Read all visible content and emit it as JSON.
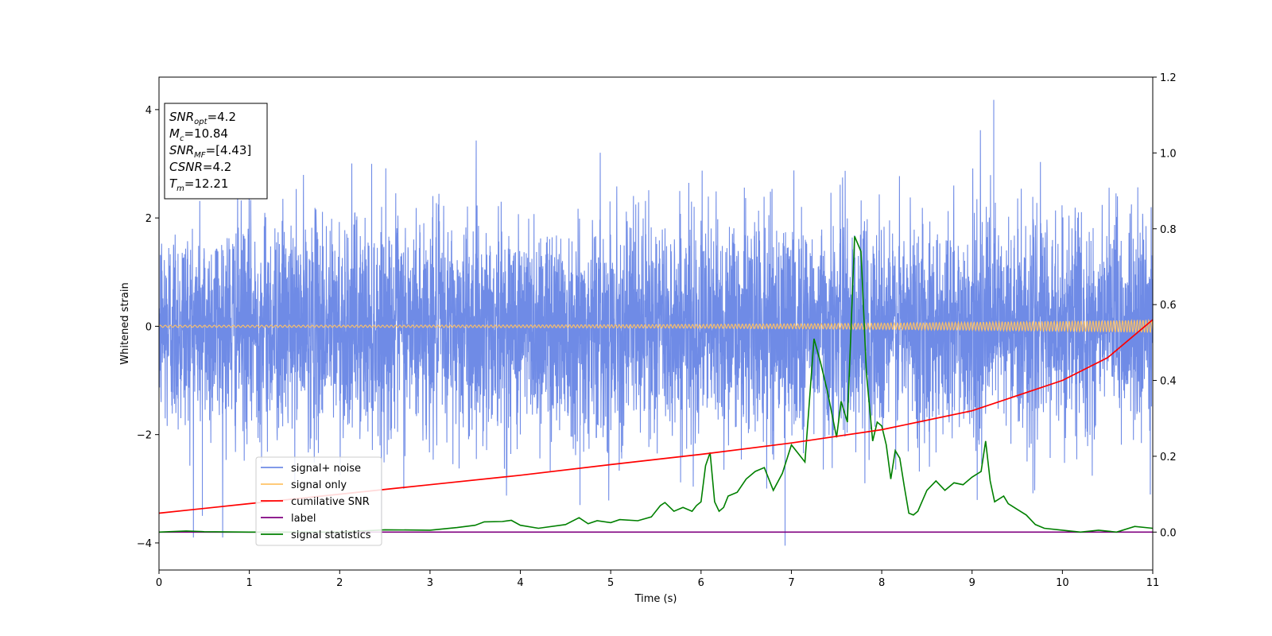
{
  "chart_data": {
    "type": "line",
    "xlabel": "Time (s)",
    "ylabel": "Whitened strain",
    "xlim": [
      0,
      11
    ],
    "ylim_left": [
      -4.5,
      4.6
    ],
    "ylim_right": [
      -0.1,
      1.2
    ],
    "x_ticks": [
      "0",
      "1",
      "2",
      "3",
      "4",
      "5",
      "6",
      "7",
      "8",
      "9",
      "10",
      "11"
    ],
    "y_ticks_left": [
      "−4",
      "−2",
      "0",
      "2",
      "4"
    ],
    "y_ticks_left_values": [
      -4,
      -2,
      0,
      2,
      4
    ],
    "y_ticks_right": [
      "0.0",
      "0.2",
      "0.4",
      "0.6",
      "0.8",
      "1.0",
      "1.2"
    ],
    "y_ticks_right_values": [
      0.0,
      0.2,
      0.4,
      0.6,
      0.8,
      1.0,
      1.2
    ],
    "grid": false,
    "legend_position": "lower-left",
    "colors": {
      "signal_noise": "#6f8be6",
      "signal_only": "#ffc266",
      "cumulative_snr": "#ff0000",
      "label": "#800080",
      "signal_statistics": "#008000"
    },
    "series": [
      {
        "name": "signal+ noise",
        "axis": "left",
        "kind": "noise",
        "amplitude_std": 1.0,
        "extreme_min": -4.05,
        "extreme_max": 4.18,
        "x_range": [
          0,
          11
        ]
      },
      {
        "name": "signal only",
        "axis": "left",
        "kind": "chirp",
        "amplitude_start": 0.02,
        "amplitude_end": 0.12,
        "x_range": [
          0,
          11
        ]
      },
      {
        "name": "cumilative SNR",
        "axis": "right",
        "x": [
          0,
          1,
          2,
          3,
          4,
          5,
          6,
          7,
          8,
          9,
          10,
          10.5,
          11
        ],
        "y": [
          0.05,
          0.075,
          0.1,
          0.125,
          0.15,
          0.178,
          0.205,
          0.235,
          0.27,
          0.32,
          0.4,
          0.46,
          0.56
        ]
      },
      {
        "name": "label",
        "axis": "right",
        "x": [
          0,
          11
        ],
        "y": [
          0.0,
          0.0
        ]
      },
      {
        "name": "signal statistics",
        "axis": "right",
        "x": [
          0,
          0.3,
          0.5,
          1.0,
          2.0,
          2.5,
          3.0,
          3.3,
          3.5,
          3.6,
          3.8,
          3.9,
          4.0,
          4.2,
          4.5,
          4.65,
          4.75,
          4.85,
          5.0,
          5.1,
          5.3,
          5.45,
          5.55,
          5.6,
          5.7,
          5.8,
          5.9,
          5.95,
          6.0,
          6.05,
          6.1,
          6.15,
          6.2,
          6.25,
          6.3,
          6.4,
          6.5,
          6.6,
          6.7,
          6.8,
          6.9,
          7.0,
          7.1,
          7.15,
          7.25,
          7.32,
          7.4,
          7.5,
          7.55,
          7.62,
          7.7,
          7.77,
          7.83,
          7.9,
          7.95,
          8.0,
          8.05,
          8.1,
          8.15,
          8.2,
          8.25,
          8.3,
          8.35,
          8.4,
          8.5,
          8.6,
          8.7,
          8.8,
          8.9,
          9.0,
          9.1,
          9.15,
          9.2,
          9.25,
          9.35,
          9.4,
          9.5,
          9.6,
          9.7,
          9.8,
          10.0,
          10.2,
          10.4,
          10.6,
          10.8,
          11.0
        ],
        "y": [
          0.0,
          0.003,
          0.001,
          0.0,
          0.0,
          0.006,
          0.005,
          0.012,
          0.018,
          0.027,
          0.028,
          0.031,
          0.018,
          0.01,
          0.02,
          0.038,
          0.022,
          0.03,
          0.025,
          0.033,
          0.03,
          0.04,
          0.07,
          0.078,
          0.055,
          0.065,
          0.055,
          0.07,
          0.08,
          0.175,
          0.21,
          0.08,
          0.055,
          0.065,
          0.095,
          0.105,
          0.14,
          0.16,
          0.17,
          0.11,
          0.155,
          0.23,
          0.2,
          0.185,
          0.51,
          0.45,
          0.37,
          0.25,
          0.345,
          0.29,
          0.78,
          0.74,
          0.42,
          0.24,
          0.29,
          0.28,
          0.23,
          0.14,
          0.215,
          0.195,
          0.12,
          0.05,
          0.045,
          0.055,
          0.11,
          0.135,
          0.11,
          0.13,
          0.125,
          0.145,
          0.16,
          0.24,
          0.135,
          0.08,
          0.095,
          0.075,
          0.06,
          0.045,
          0.02,
          0.01,
          0.005,
          0.0,
          0.005,
          0.0,
          0.015,
          0.01
        ]
      }
    ],
    "annotation_box": {
      "lines": [
        {
          "name": "SNR",
          "sub": "opt",
          "value": "=4.2"
        },
        {
          "name": "M",
          "sub": "c",
          "value": "=10.84"
        },
        {
          "name": "SNR",
          "sub": "MF",
          "value": "=[4.43]"
        },
        {
          "name": "CSNR",
          "sub": "",
          "value": "=4.2"
        },
        {
          "name": "T",
          "sub": "m",
          "value": "=12.21"
        }
      ]
    }
  }
}
